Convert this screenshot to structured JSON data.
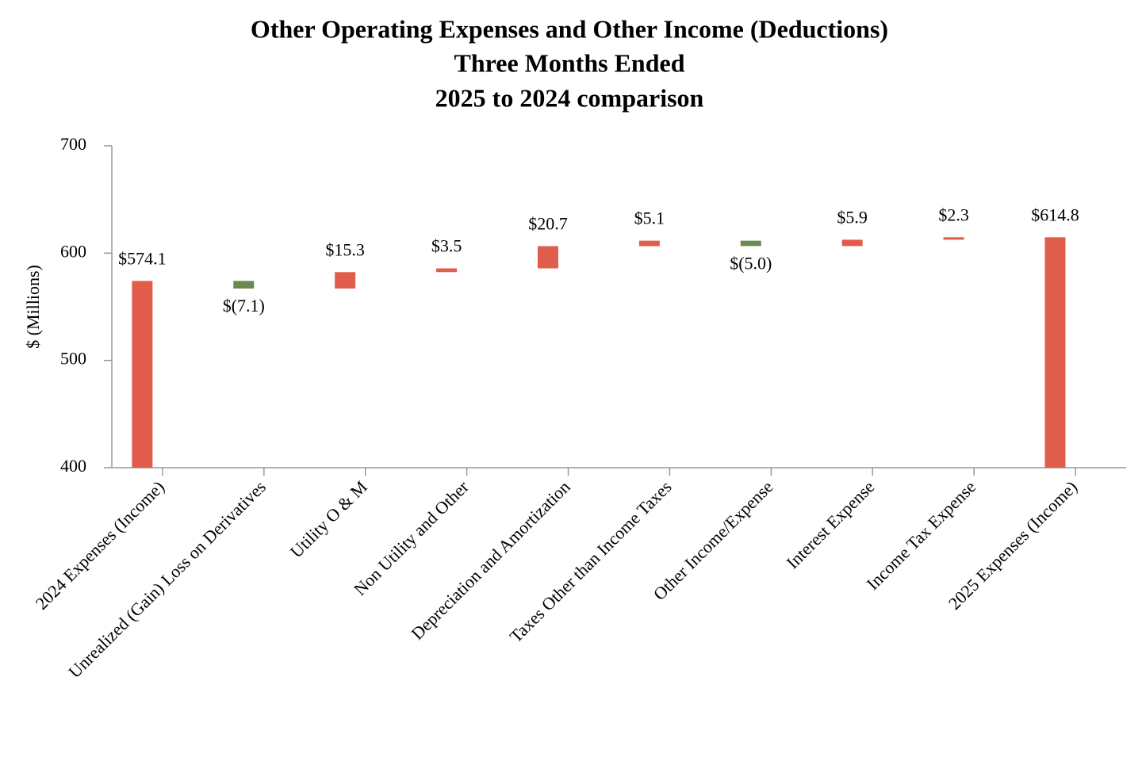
{
  "chart_data": {
    "type": "waterfall",
    "title": [
      "Other Operating Expenses and Other Income (Deductions)",
      "Three Months Ended",
      "2025 to 2024 comparison"
    ],
    "y_label": "$ (Millions)",
    "categories": [
      "2024 Expenses (Income)",
      "Unrealized (Gain) Loss on Derivatives",
      "Utility O & M",
      "Non Utility and Other",
      "Depreciation and Amortization",
      "Taxes Other than Income Taxes",
      "Other Income/Expense",
      "Interest Expense",
      "Income Tax Expense",
      "2025 Expenses (Income)"
    ],
    "measure": [
      "total",
      "relative",
      "relative",
      "relative",
      "relative",
      "relative",
      "relative",
      "relative",
      "relative",
      "total"
    ],
    "values": [
      574.1,
      -7.1,
      15.3,
      3.5,
      20.7,
      5.1,
      -5.0,
      5.9,
      2.3,
      614.8
    ],
    "value_labels": [
      "$574.1",
      "$(7.1)",
      "$15.3",
      "$3.5",
      "$20.7",
      "$5.1",
      "$(5.0)",
      "$5.9",
      "$2.3",
      "$614.8"
    ],
    "color_total": "#e05d4b",
    "color_increase": "#e05d4b",
    "color_decrease": "#6a8a4f",
    "ylim": [
      400,
      700
    ],
    "yticks": [
      400,
      500,
      600,
      700
    ]
  }
}
